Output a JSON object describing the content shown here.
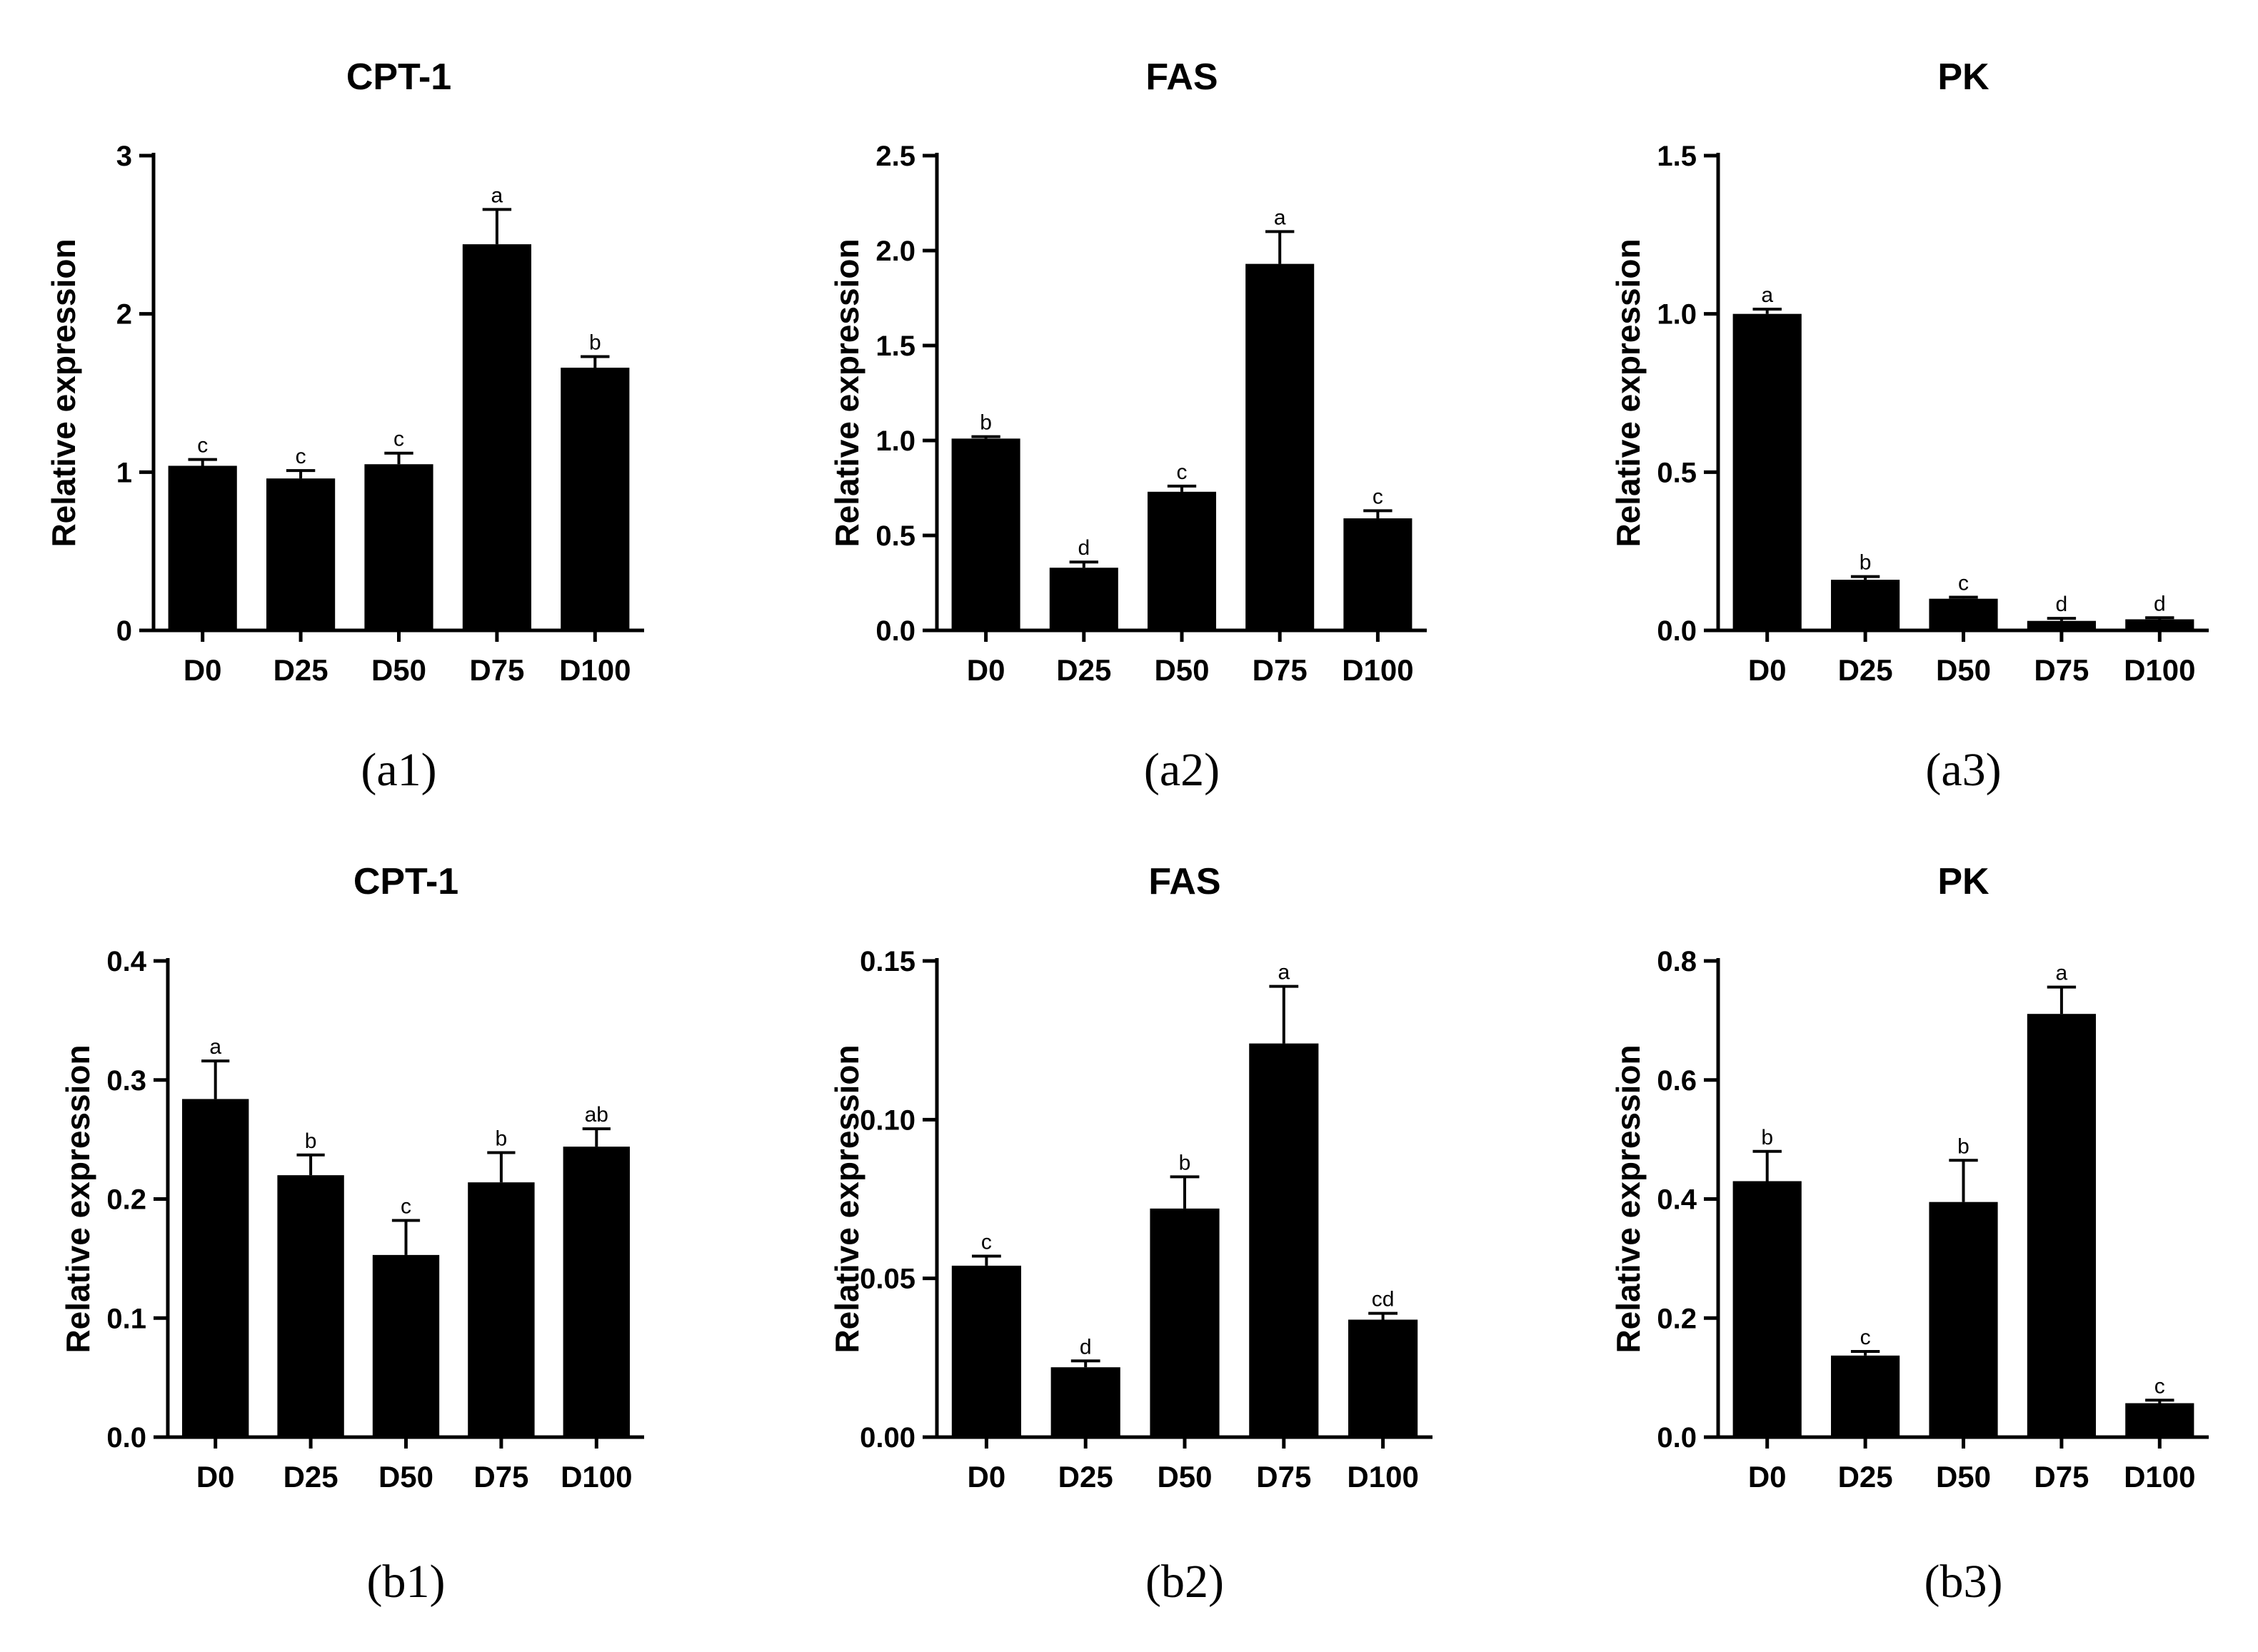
{
  "figure": {
    "colors": {
      "bar": "#000000",
      "axis": "#000000",
      "background": "#ffffff"
    }
  },
  "chart_data": [
    {
      "id": "a1",
      "panel_label": "(a1)",
      "type": "bar",
      "title": "CPT-1",
      "xlabel": "",
      "ylabel": "Relative expression",
      "categories": [
        "D0",
        "D25",
        "D50",
        "D75",
        "D100"
      ],
      "values": [
        1.04,
        0.96,
        1.05,
        2.44,
        1.66
      ],
      "errors": [
        0.04,
        0.05,
        0.07,
        0.22,
        0.07
      ],
      "significance": [
        "c",
        "c",
        "c",
        "a",
        "b"
      ],
      "ylim": [
        0,
        3
      ],
      "yticks": [
        0,
        1,
        2,
        3
      ],
      "ytick_labels": [
        "0",
        "1",
        "2",
        "3"
      ],
      "grid": false
    },
    {
      "id": "a2",
      "panel_label": "(a2)",
      "type": "bar",
      "title": "FAS",
      "xlabel": "",
      "ylabel": "Relative expression",
      "categories": [
        "D0",
        "D25",
        "D50",
        "D75",
        "D100"
      ],
      "values": [
        1.01,
        0.33,
        0.73,
        1.93,
        0.59
      ],
      "errors": [
        0.01,
        0.03,
        0.03,
        0.17,
        0.04
      ],
      "significance": [
        "b",
        "d",
        "c",
        "a",
        "c"
      ],
      "ylim": [
        0,
        2.5
      ],
      "yticks": [
        0,
        0.5,
        1.0,
        1.5,
        2.0,
        2.5
      ],
      "ytick_labels": [
        "0.0",
        "0.5",
        "1.0",
        "1.5",
        "2.0",
        "2.5"
      ],
      "grid": false
    },
    {
      "id": "a3",
      "panel_label": "(a3)",
      "type": "bar",
      "title": "PK",
      "xlabel": "",
      "ylabel": "Relative expression",
      "categories": [
        "D0",
        "D25",
        "D50",
        "D75",
        "D100"
      ],
      "values": [
        1.0,
        0.16,
        0.1,
        0.03,
        0.035
      ],
      "errors": [
        0.015,
        0.01,
        0.005,
        0.008,
        0.005
      ],
      "significance": [
        "a",
        "b",
        "c",
        "d",
        "d"
      ],
      "ylim": [
        0,
        1.5
      ],
      "yticks": [
        0,
        0.5,
        1.0,
        1.5
      ],
      "ytick_labels": [
        "0.0",
        "0.5",
        "1.0",
        "1.5"
      ],
      "grid": false
    },
    {
      "id": "b1",
      "panel_label": "(b1)",
      "type": "bar",
      "title": "CPT-1",
      "xlabel": "",
      "ylabel": "Relative expression",
      "categories": [
        "D0",
        "D25",
        "D50",
        "D75",
        "D100"
      ],
      "values": [
        0.284,
        0.22,
        0.153,
        0.214,
        0.244
      ],
      "errors": [
        0.032,
        0.017,
        0.029,
        0.025,
        0.015
      ],
      "significance": [
        "a",
        "b",
        "c",
        "b",
        "ab"
      ],
      "ylim": [
        0,
        0.4
      ],
      "yticks": [
        0,
        0.1,
        0.2,
        0.3,
        0.4
      ],
      "ytick_labels": [
        "0.0",
        "0.1",
        "0.2",
        "0.3",
        "0.4"
      ],
      "grid": false
    },
    {
      "id": "b2",
      "panel_label": "(b2)",
      "type": "bar",
      "title": "FAS",
      "xlabel": "",
      "ylabel": "Relative expression",
      "categories": [
        "D0",
        "D25",
        "D50",
        "D75",
        "D100"
      ],
      "values": [
        0.054,
        0.022,
        0.072,
        0.124,
        0.037
      ],
      "errors": [
        0.003,
        0.002,
        0.01,
        0.018,
        0.002
      ],
      "significance": [
        "c",
        "d",
        "b",
        "a",
        "cd"
      ],
      "ylim": [
        0,
        0.15
      ],
      "yticks": [
        0,
        0.05,
        0.1,
        0.15
      ],
      "ytick_labels": [
        "0.00",
        "0.05",
        "0.10",
        "0.15"
      ],
      "grid": false
    },
    {
      "id": "b3",
      "panel_label": "(b3)",
      "type": "bar",
      "title": "PK",
      "xlabel": "",
      "ylabel": "Relative expression",
      "categories": [
        "D0",
        "D25",
        "D50",
        "D75",
        "D100"
      ],
      "values": [
        0.43,
        0.137,
        0.395,
        0.711,
        0.057
      ],
      "errors": [
        0.05,
        0.007,
        0.07,
        0.045,
        0.005
      ],
      "significance": [
        "b",
        "c",
        "b",
        "a",
        "c"
      ],
      "ylim": [
        0,
        0.8
      ],
      "yticks": [
        0,
        0.2,
        0.4,
        0.6,
        0.8
      ],
      "ytick_labels": [
        "0.0",
        "0.2",
        "0.4",
        "0.6",
        "0.8"
      ],
      "grid": false
    }
  ]
}
